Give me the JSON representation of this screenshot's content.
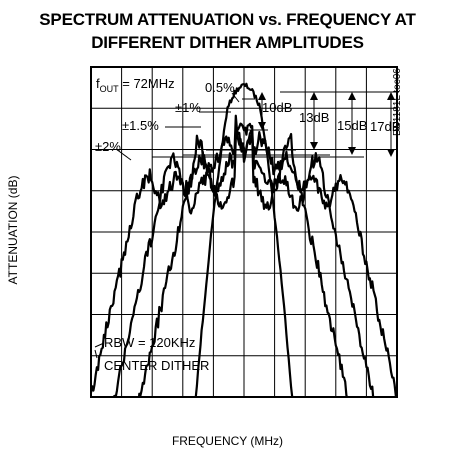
{
  "chart_data": {
    "type": "line",
    "title_lines": [
      "SPECTRUM ATTENUATION vs. FREQUENCY AT",
      "DIFFERENT DITHER AMPLITUDES"
    ],
    "xlabel": "FREQUENCY (MHz)",
    "ylabel": "ATTENUATION (dB)",
    "grid": true,
    "watermark": "DS1181L toc06",
    "annotations": {
      "fout_prefix": "f",
      "fout_sub": "OUT",
      "fout_rest": " = 72MHz",
      "rbw": "RBW = 120KHz",
      "mode": "CENTER DITHER"
    },
    "dither_labels": [
      "0.5%",
      "±1%",
      "±1.5%",
      "±2%"
    ],
    "attenuation_labels": [
      "10dB",
      "13dB",
      "15dB",
      "17dB"
    ],
    "series": [
      {
        "label": "0.5%",
        "half_width": 0.55,
        "plateau": 1.0
      },
      {
        "label": "±1%",
        "half_width": 1.55,
        "plateau": 2.1
      },
      {
        "label": "±1.5%",
        "half_width": 2.55,
        "plateau": 2.6
      },
      {
        "label": "±2%",
        "half_width": 3.45,
        "plateau": 3.0
      }
    ],
    "x_range": [
      -5,
      5
    ],
    "y_range": [
      0,
      8
    ]
  }
}
